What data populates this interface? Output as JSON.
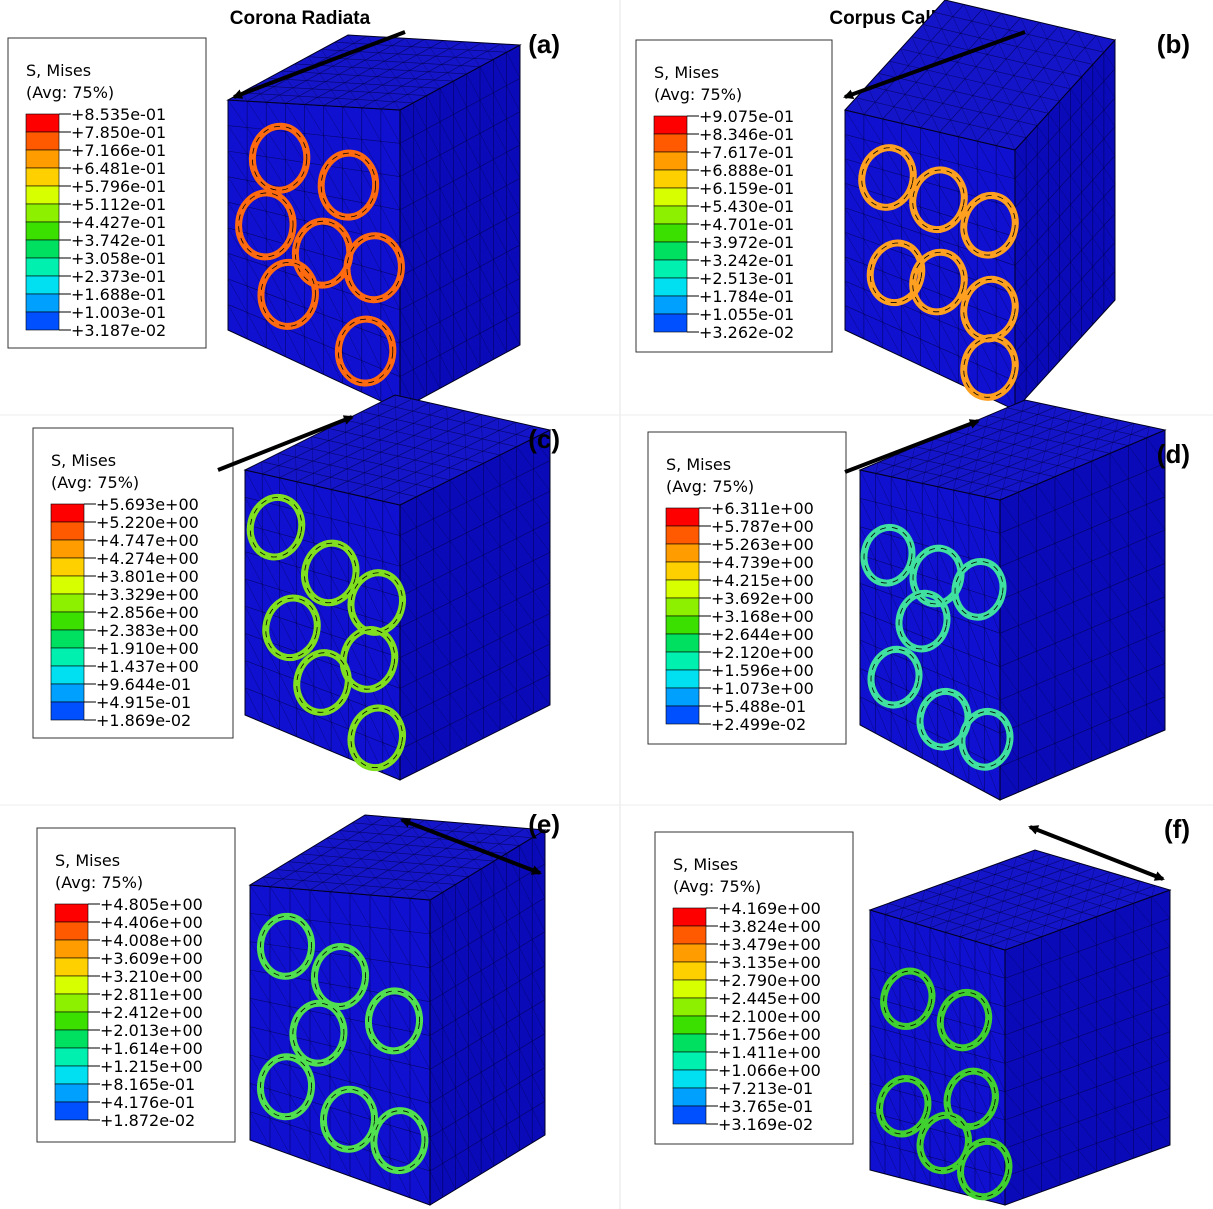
{
  "columns": [
    "Corona Radiata",
    "Corpus Callosum"
  ],
  "panels": [
    {
      "label": "(a)",
      "legend": {
        "title": "S, Mises",
        "subtitle": "(Avg: 75%)",
        "values": [
          "+8.535e-01",
          "+7.850e-01",
          "+7.166e-01",
          "+6.481e-01",
          "+5.796e-01",
          "+5.112e-01",
          "+4.427e-01",
          "+3.742e-01",
          "+3.058e-01",
          "+2.373e-01",
          "+1.688e-01",
          "+1.003e-01",
          "+3.187e-02"
        ]
      }
    },
    {
      "label": "(b)",
      "legend": {
        "title": "S, Mises",
        "subtitle": "(Avg: 75%)",
        "values": [
          "+9.075e-01",
          "+8.346e-01",
          "+7.617e-01",
          "+6.888e-01",
          "+6.159e-01",
          "+5.430e-01",
          "+4.701e-01",
          "+3.972e-01",
          "+3.242e-01",
          "+2.513e-01",
          "+1.784e-01",
          "+1.055e-01",
          "+3.262e-02"
        ]
      }
    },
    {
      "label": "(c)",
      "legend": {
        "title": "S, Mises",
        "subtitle": "(Avg: 75%)",
        "values": [
          "+5.693e+00",
          "+5.220e+00",
          "+4.747e+00",
          "+4.274e+00",
          "+3.801e+00",
          "+3.329e+00",
          "+2.856e+00",
          "+2.383e+00",
          "+1.910e+00",
          "+1.437e+00",
          "+9.644e-01",
          "+4.915e-01",
          "+1.869e-02"
        ]
      }
    },
    {
      "label": "(d)",
      "legend": {
        "title": "S, Mises",
        "subtitle": "(Avg: 75%)",
        "values": [
          "+6.311e+00",
          "+5.787e+00",
          "+5.263e+00",
          "+4.739e+00",
          "+4.215e+00",
          "+3.692e+00",
          "+3.168e+00",
          "+2.644e+00",
          "+2.120e+00",
          "+1.596e+00",
          "+1.073e+00",
          "+5.488e-01",
          "+2.499e-02"
        ]
      }
    },
    {
      "label": "(e)",
      "legend": {
        "title": "S, Mises",
        "subtitle": "(Avg: 75%)",
        "values": [
          "+4.805e+00",
          "+4.406e+00",
          "+4.008e+00",
          "+3.609e+00",
          "+3.210e+00",
          "+2.811e+00",
          "+2.412e+00",
          "+2.013e+00",
          "+1.614e+00",
          "+1.215e+00",
          "+8.165e-01",
          "+4.176e-01",
          "+1.872e-02"
        ]
      }
    },
    {
      "label": "(f)",
      "legend": {
        "title": "S, Mises",
        "subtitle": "(Avg: 75%)",
        "values": [
          "+4.169e+00",
          "+3.824e+00",
          "+3.479e+00",
          "+3.135e+00",
          "+2.790e+00",
          "+2.445e+00",
          "+2.100e+00",
          "+1.756e+00",
          "+1.411e+00",
          "+1.066e+00",
          "+7.213e-01",
          "+3.765e-01",
          "+3.169e-02"
        ]
      }
    }
  ]
}
